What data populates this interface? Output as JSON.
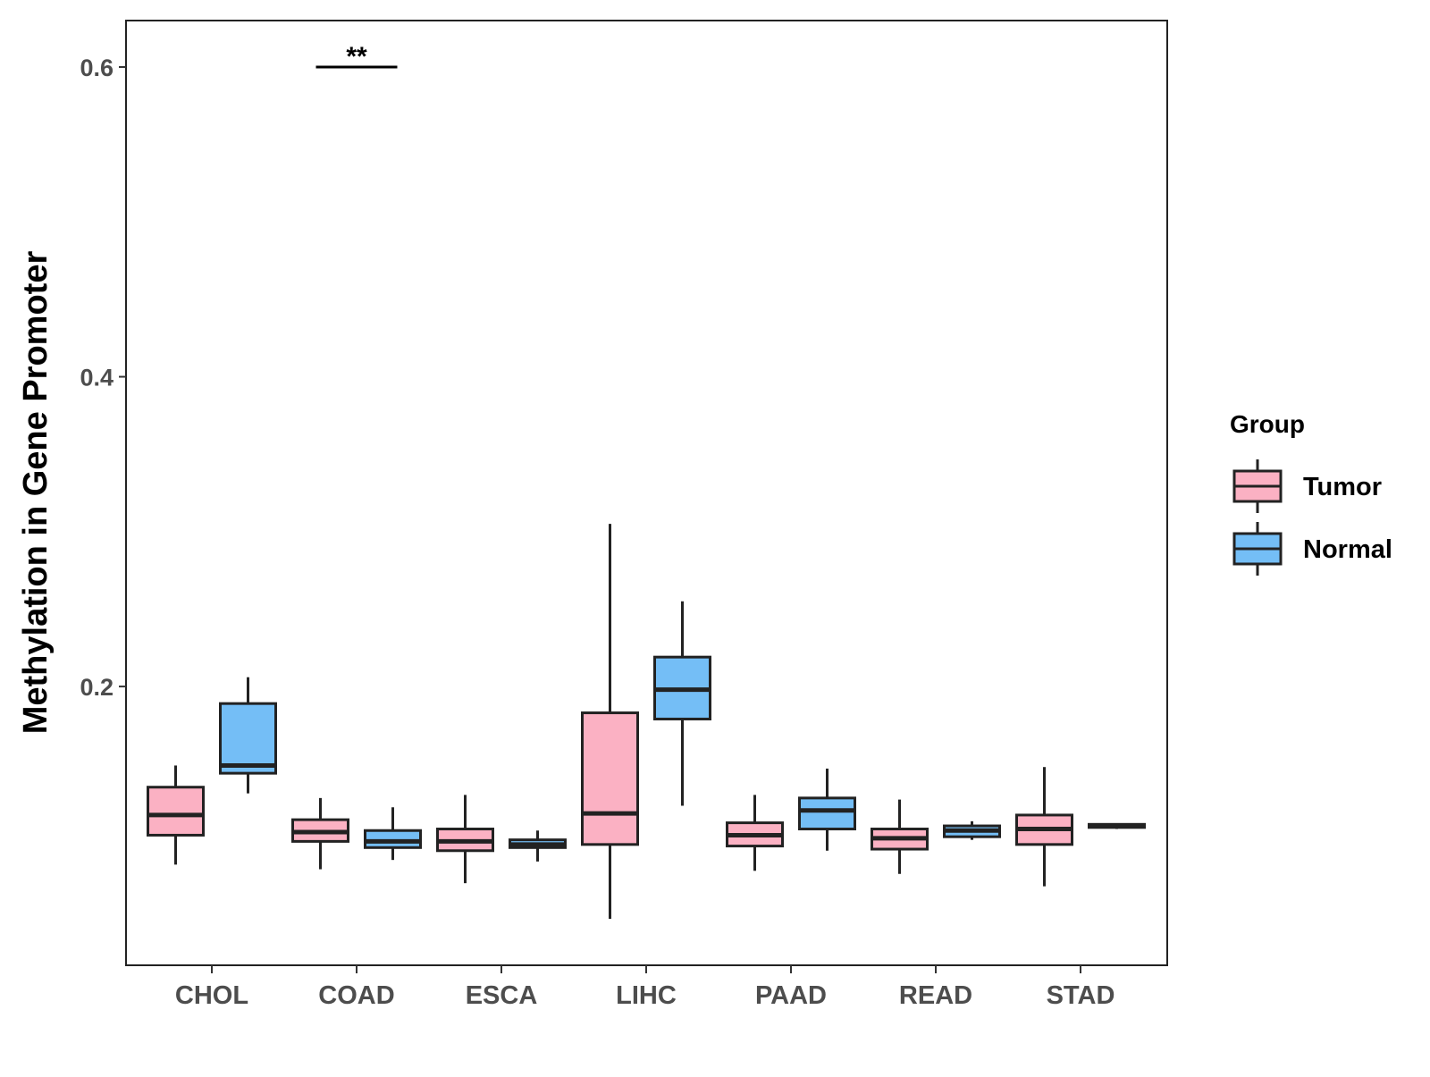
{
  "chart_data": {
    "type": "boxplot",
    "title": "",
    "xlabel": "",
    "ylabel": "Methylation in Gene Promoter",
    "ylim": [
      0.02,
      0.63
    ],
    "yticks": [
      0.2,
      0.4,
      0.6
    ],
    "ytick_labels": [
      "0.2",
      "0.4",
      "0.6"
    ],
    "grid": false,
    "categories": [
      "CHOL",
      "COAD",
      "ESCA",
      "LIHC",
      "PAAD",
      "READ",
      "STAD"
    ],
    "legend": {
      "title": "Group",
      "position": "right",
      "entries": [
        "Tumor",
        "Normal"
      ]
    },
    "series": [
      {
        "name": "Tumor",
        "color": "#fbb1c3",
        "boxes": [
          {
            "category": "CHOL",
            "min": 0.085,
            "q1": 0.104,
            "median": 0.117,
            "q3": 0.135,
            "max": 0.149
          },
          {
            "category": "COAD",
            "min": 0.082,
            "q1": 0.1,
            "median": 0.106,
            "q3": 0.114,
            "max": 0.128
          },
          {
            "category": "ESCA",
            "min": 0.073,
            "q1": 0.094,
            "median": 0.1,
            "q3": 0.108,
            "max": 0.13
          },
          {
            "category": "LIHC",
            "min": 0.05,
            "q1": 0.098,
            "median": 0.118,
            "q3": 0.183,
            "max": 0.305
          },
          {
            "category": "PAAD",
            "min": 0.081,
            "q1": 0.097,
            "median": 0.104,
            "q3": 0.112,
            "max": 0.13
          },
          {
            "category": "READ",
            "min": 0.079,
            "q1": 0.095,
            "median": 0.102,
            "q3": 0.108,
            "max": 0.127
          },
          {
            "category": "STAD",
            "min": 0.071,
            "q1": 0.098,
            "median": 0.108,
            "q3": 0.117,
            "max": 0.148
          }
        ]
      },
      {
        "name": "Normal",
        "color": "#74bef6",
        "boxes": [
          {
            "category": "CHOL",
            "min": 0.131,
            "q1": 0.144,
            "median": 0.149,
            "q3": 0.189,
            "max": 0.206
          },
          {
            "category": "COAD",
            "min": 0.088,
            "q1": 0.096,
            "median": 0.1,
            "q3": 0.107,
            "max": 0.122
          },
          {
            "category": "ESCA",
            "min": 0.087,
            "q1": 0.096,
            "median": 0.098,
            "q3": 0.101,
            "max": 0.107
          },
          {
            "category": "LIHC",
            "min": 0.123,
            "q1": 0.179,
            "median": 0.198,
            "q3": 0.219,
            "max": 0.255
          },
          {
            "category": "PAAD",
            "min": 0.094,
            "q1": 0.108,
            "median": 0.12,
            "q3": 0.128,
            "max": 0.147
          },
          {
            "category": "READ",
            "min": 0.101,
            "q1": 0.103,
            "median": 0.107,
            "q3": 0.11,
            "max": 0.113
          },
          {
            "category": "STAD",
            "min": 0.108,
            "q1": 0.109,
            "median": 0.11,
            "q3": 0.111,
            "max": 0.111
          }
        ]
      }
    ],
    "annotations": [
      {
        "text": "**",
        "category": "COAD",
        "y": 0.6
      }
    ]
  }
}
